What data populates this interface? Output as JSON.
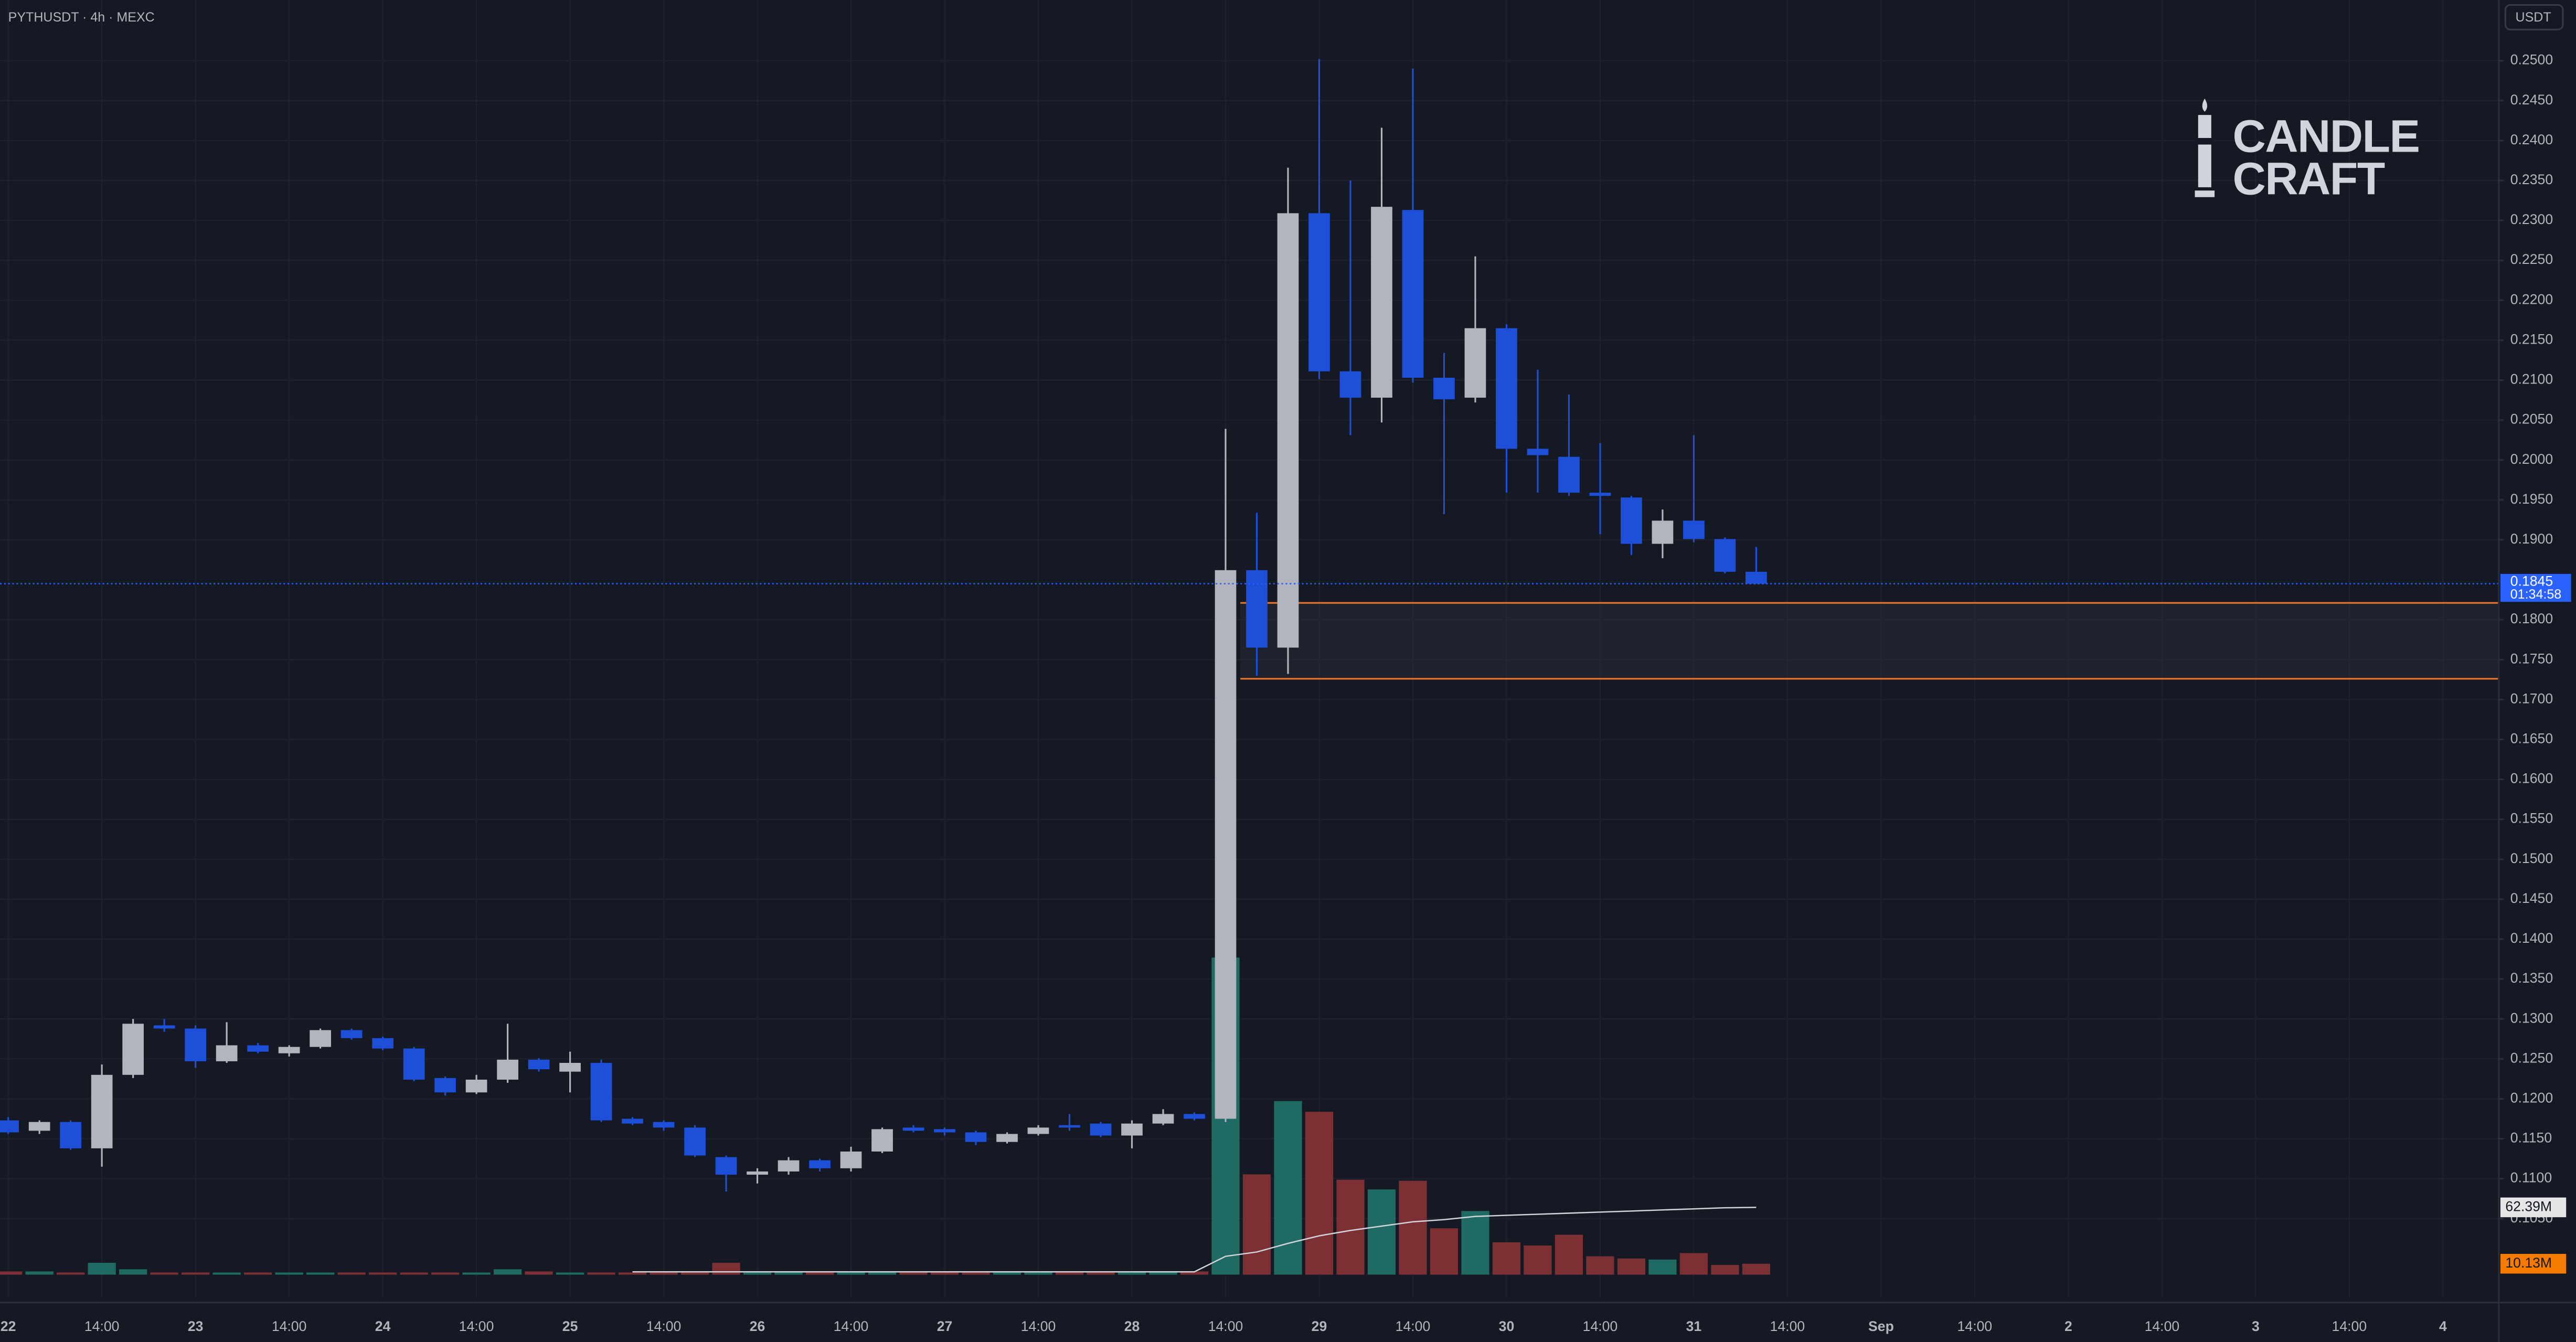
{
  "header": {
    "symbol": "PYTHUSDT · 4h · MEXC",
    "currency": "USDT"
  },
  "logo": [
    "CANDLE",
    "CRAFT"
  ],
  "chart_data": {
    "type": "candlestick",
    "x_labels": [
      "22",
      "14:00",
      "23",
      "14:00",
      "24",
      "14:00",
      "25",
      "14:00",
      "26",
      "14:00",
      "27",
      "14:00",
      "28",
      "14:00",
      "29",
      "14:00",
      "30",
      "14:00",
      "31",
      "14:00",
      "Sep",
      "14:00",
      "2",
      "14:00",
      "3",
      "14:00",
      "4"
    ],
    "candles": {
      "open": [
        0.1173,
        0.116,
        0.1171,
        0.1138,
        0.123,
        0.1292,
        0.1288,
        0.1247,
        0.1267,
        0.1257,
        0.1265,
        0.1286,
        0.1276,
        0.1263,
        0.1226,
        0.1208,
        0.1224,
        0.1249,
        0.1234,
        0.1245,
        0.1175,
        0.1171,
        0.1164,
        0.1127,
        0.1105,
        0.1109,
        0.1123,
        0.1113,
        0.1134,
        0.1164,
        0.1162,
        0.1158,
        0.1146,
        0.1156,
        0.1167,
        0.1169,
        0.1154,
        0.1169,
        0.1181,
        0.1175,
        0.1862,
        0.1765,
        0.2309,
        0.2111,
        0.2078,
        0.2313,
        0.2103,
        0.2078,
        0.2165,
        0.2014,
        0.2004,
        0.1959,
        0.1953,
        0.1895,
        0.1924,
        0.1901,
        0.186
      ],
      "high": [
        0.1177,
        0.1173,
        0.1173,
        0.1243,
        0.13,
        0.13,
        0.1292,
        0.1296,
        0.127,
        0.1267,
        0.1288,
        0.1288,
        0.1278,
        0.1265,
        0.1228,
        0.123,
        0.1294,
        0.1251,
        0.1259,
        0.1249,
        0.1177,
        0.1173,
        0.1167,
        0.1129,
        0.1113,
        0.1127,
        0.1125,
        0.114,
        0.1164,
        0.1167,
        0.1164,
        0.116,
        0.1158,
        0.1167,
        0.1181,
        0.1171,
        0.1173,
        0.1187,
        0.1183,
        0.2039,
        0.1934,
        0.2366,
        0.2502,
        0.235,
        0.2416,
        0.249,
        0.2134,
        0.2255,
        0.217,
        0.2113,
        0.2082,
        0.2021,
        0.1955,
        0.1938,
        0.2031,
        0.1903,
        0.1891
      ],
      "low": [
        0.1156,
        0.1156,
        0.1136,
        0.1115,
        0.1226,
        0.1284,
        0.1239,
        0.1245,
        0.1257,
        0.1253,
        0.1263,
        0.1274,
        0.1261,
        0.1222,
        0.1204,
        0.1206,
        0.122,
        0.1234,
        0.1208,
        0.1171,
        0.1167,
        0.116,
        0.1127,
        0.1084,
        0.1094,
        0.1105,
        0.1109,
        0.1109,
        0.1132,
        0.1158,
        0.1154,
        0.1142,
        0.1144,
        0.1154,
        0.116,
        0.1152,
        0.1138,
        0.1167,
        0.1173,
        0.1171,
        0.173,
        0.1732,
        0.2101,
        0.2031,
        0.2047,
        0.2097,
        0.1932,
        0.2072,
        0.1959,
        0.1959,
        0.1955,
        0.1907,
        0.1881,
        0.1877,
        0.1897,
        0.1858,
        0.1845
      ],
      "close": [
        0.1158,
        0.1171,
        0.1138,
        0.123,
        0.1294,
        0.1288,
        0.1247,
        0.1267,
        0.1259,
        0.1265,
        0.1286,
        0.1276,
        0.1263,
        0.1224,
        0.1208,
        0.1224,
        0.1249,
        0.1237,
        0.1245,
        0.1173,
        0.1169,
        0.1164,
        0.1129,
        0.1105,
        0.1109,
        0.1123,
        0.1113,
        0.1134,
        0.1162,
        0.116,
        0.1158,
        0.1146,
        0.1156,
        0.1164,
        0.1164,
        0.1154,
        0.1169,
        0.1181,
        0.1175,
        0.1862,
        0.1765,
        0.2309,
        0.2111,
        0.2078,
        0.2317,
        0.2103,
        0.2076,
        0.2165,
        0.2014,
        0.2006,
        0.1959,
        0.1955,
        0.1895,
        0.1924,
        0.1901,
        0.186,
        0.1845
      ]
    },
    "up_color": "#b2b5be",
    "down_color": "#1e4fd8",
    "ylim": [
      0.0951,
      0.2576
    ],
    "yticks": [
      {
        "value": 0.105,
        "label": "0.1050"
      },
      {
        "value": 0.11,
        "label": "0.1100"
      },
      {
        "value": 0.115,
        "label": "0.1150"
      },
      {
        "value": 0.12,
        "label": "0.1200"
      },
      {
        "value": 0.125,
        "label": "0.1250"
      },
      {
        "value": 0.13,
        "label": "0.1300"
      },
      {
        "value": 0.135,
        "label": "0.1350"
      },
      {
        "value": 0.14,
        "label": "0.1400"
      },
      {
        "value": 0.145,
        "label": "0.1450"
      },
      {
        "value": 0.15,
        "label": "0.1500"
      },
      {
        "value": 0.155,
        "label": "0.1550"
      },
      {
        "value": 0.16,
        "label": "0.1600"
      },
      {
        "value": 0.165,
        "label": "0.1650"
      },
      {
        "value": 0.17,
        "label": "0.1700"
      },
      {
        "value": 0.175,
        "label": "0.1750"
      },
      {
        "value": 0.18,
        "label": "0.1800"
      },
      {
        "value": 0.19,
        "label": "0.1900"
      },
      {
        "value": 0.195,
        "label": "0.1950"
      },
      {
        "value": 0.2,
        "label": "0.2000"
      },
      {
        "value": 0.205,
        "label": "0.2050"
      },
      {
        "value": 0.21,
        "label": "0.2100"
      },
      {
        "value": 0.215,
        "label": "0.2150"
      },
      {
        "value": 0.22,
        "label": "0.2200"
      },
      {
        "value": 0.225,
        "label": "0.2250"
      },
      {
        "value": 0.23,
        "label": "0.2300"
      },
      {
        "value": 0.235,
        "label": "0.2350"
      },
      {
        "value": 0.24,
        "label": "0.2400"
      },
      {
        "value": 0.245,
        "label": "0.2450"
      },
      {
        "value": 0.25,
        "label": "0.2500"
      }
    ],
    "grid": true,
    "zone": {
      "top": 0.1821,
      "bottom": 0.1726,
      "color": "#e8742a"
    },
    "price_line_color": "#2962ff",
    "countdown": "01:34:58",
    "volume": {
      "values": [
        3,
        3,
        2,
        11,
        5,
        2,
        2,
        2,
        2,
        2,
        2,
        2,
        2,
        2,
        2,
        2,
        5,
        3,
        2,
        2,
        2,
        2,
        2,
        11,
        2,
        2,
        2,
        2,
        2,
        2,
        2,
        2,
        2,
        2,
        2,
        2,
        2,
        2,
        3,
        294,
        93,
        161,
        151,
        88,
        79,
        87,
        43,
        59,
        30,
        27,
        37,
        17,
        15,
        14,
        20,
        9,
        10.13
      ],
      "ma": [
        null,
        null,
        null,
        null,
        null,
        null,
        null,
        null,
        null,
        null,
        null,
        null,
        null,
        null,
        null,
        null,
        null,
        null,
        null,
        null,
        2.6,
        2.6,
        2.6,
        2.6,
        2.6,
        2.6,
        2.6,
        2.6,
        2.6,
        2.6,
        2.6,
        2.6,
        2.6,
        2.6,
        2.6,
        2.6,
        2.6,
        2.6,
        2.6,
        17,
        21,
        29,
        36,
        41,
        45,
        49,
        51,
        54,
        55,
        56,
        57,
        58,
        59,
        60,
        61,
        62,
        62.39
      ],
      "ylim": [
        0,
        300
      ],
      "up_color": "#1f6b63",
      "down_color": "#7d3034",
      "ma_color": "#d1d4dc",
      "last_label": "10.13M",
      "ma_label": "62.39M"
    }
  }
}
